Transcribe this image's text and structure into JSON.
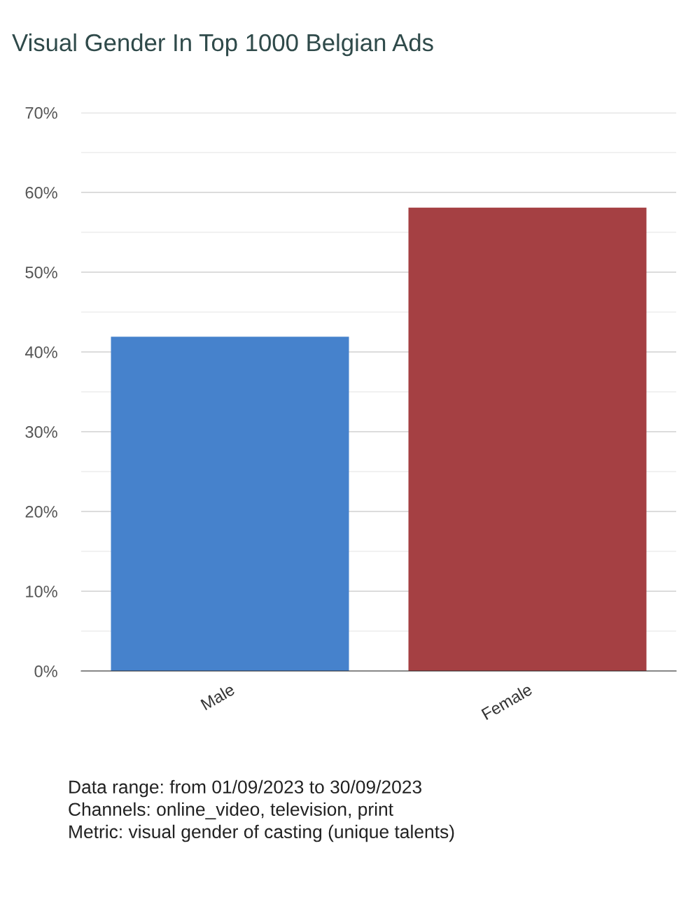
{
  "chart_data": {
    "type": "bar",
    "title": "Visual Gender In Top 1000 Belgian Ads",
    "categories": [
      "Male",
      "Female"
    ],
    "values": [
      41.9,
      58.1
    ],
    "colors": [
      "#4682cc",
      "#a54043"
    ],
    "ylim": [
      0,
      70
    ],
    "yticks": [
      {
        "value": 0,
        "label": "0%"
      },
      {
        "value": 5,
        "label": null
      },
      {
        "value": 10,
        "label": "10%"
      },
      {
        "value": 15,
        "label": null
      },
      {
        "value": 20,
        "label": "20%"
      },
      {
        "value": 25,
        "label": null
      },
      {
        "value": 30,
        "label": "30%"
      },
      {
        "value": 35,
        "label": null
      },
      {
        "value": 40,
        "label": "40%"
      },
      {
        "value": 45,
        "label": null
      },
      {
        "value": 50,
        "label": "50%"
      },
      {
        "value": 55,
        "label": null
      },
      {
        "value": 60,
        "label": "60%"
      },
      {
        "value": 65,
        "label": null
      },
      {
        "value": 70,
        "label": "70%"
      }
    ],
    "grid": "y",
    "legend": false,
    "annotations": [
      "Data range: from 01/09/2023 to 30/09/2023",
      "Channels: online_video, television, print",
      "Metric: visual gender of casting (unique talents)"
    ]
  }
}
